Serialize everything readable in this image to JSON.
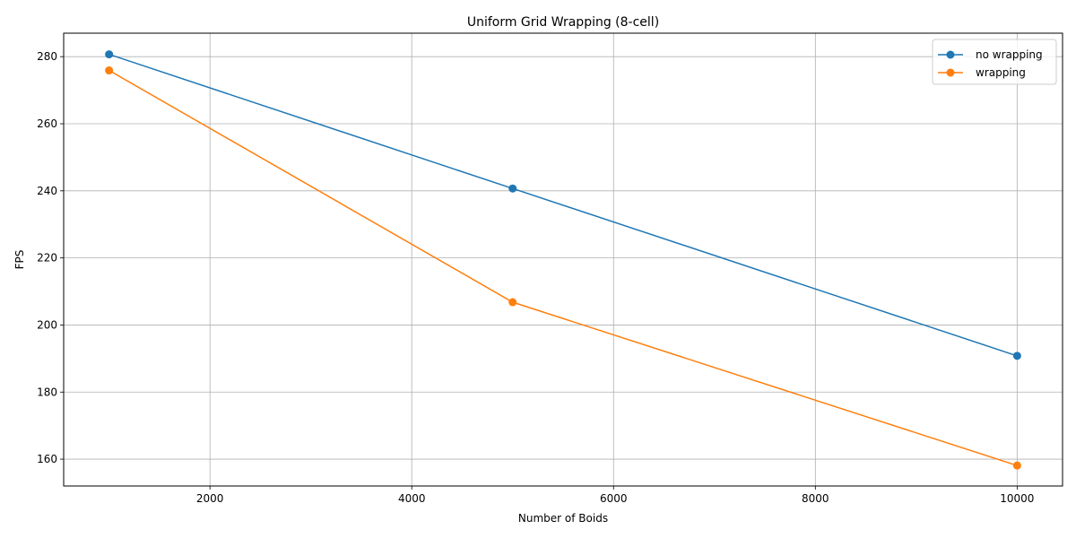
{
  "chart_data": {
    "type": "line",
    "title": "Uniform Grid Wrapping (8-cell)",
    "xlabel": "Number of Boids",
    "ylabel": "FPS",
    "xlim": [
      550,
      10450
    ],
    "ylim": [
      152,
      287
    ],
    "xticks": [
      2000,
      4000,
      6000,
      8000,
      10000
    ],
    "yticks": [
      160,
      180,
      200,
      220,
      240,
      260,
      280
    ],
    "grid": true,
    "legend_position": "top-right",
    "series": [
      {
        "name": "no wrapping",
        "color": "#1f77b4",
        "x": [
          1000,
          5000,
          10000
        ],
        "y": [
          280.7,
          240.7,
          190.8
        ]
      },
      {
        "name": "wrapping",
        "color": "#ff7f0e",
        "x": [
          1000,
          5000,
          10000
        ],
        "y": [
          275.9,
          206.8,
          158.1
        ]
      }
    ]
  }
}
